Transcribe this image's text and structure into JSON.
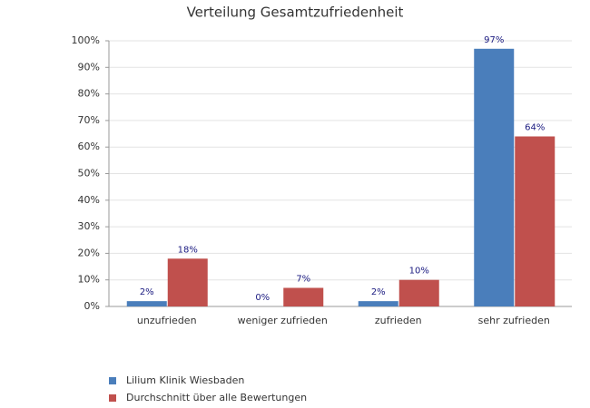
{
  "chart_data": {
    "type": "bar",
    "title": "Verteilung Gesamtzufriedenheit",
    "categories": [
      "unzufrieden",
      "weniger zufrieden",
      "zufrieden",
      "sehr zufrieden"
    ],
    "series": [
      {
        "name": "Lilium Klinik Wiesbaden",
        "color": "#4a7ebb",
        "values": [
          2,
          0,
          2,
          97
        ],
        "value_labels": [
          "2%",
          "0%",
          "2%",
          "97%"
        ]
      },
      {
        "name": "Durchschnitt über alle Bewertungen",
        "color": "#c0504d",
        "values": [
          18,
          7,
          10,
          64
        ],
        "value_labels": [
          "18%",
          "7%",
          "10%",
          "64%"
        ]
      }
    ],
    "ylim": [
      0,
      100
    ],
    "yticks": [
      {
        "value": 0,
        "label": "0%"
      },
      {
        "value": 10,
        "label": "10%"
      },
      {
        "value": 20,
        "label": "20%"
      },
      {
        "value": 30,
        "label": "30%"
      },
      {
        "value": 40,
        "label": "40%"
      },
      {
        "value": 50,
        "label": "50%"
      },
      {
        "value": 60,
        "label": "60%"
      },
      {
        "value": 70,
        "label": "70%"
      },
      {
        "value": 80,
        "label": "80%"
      },
      {
        "value": 90,
        "label": "90%"
      },
      {
        "value": 100,
        "label": "100%"
      }
    ],
    "grid": true,
    "legend": "bottom-left"
  }
}
